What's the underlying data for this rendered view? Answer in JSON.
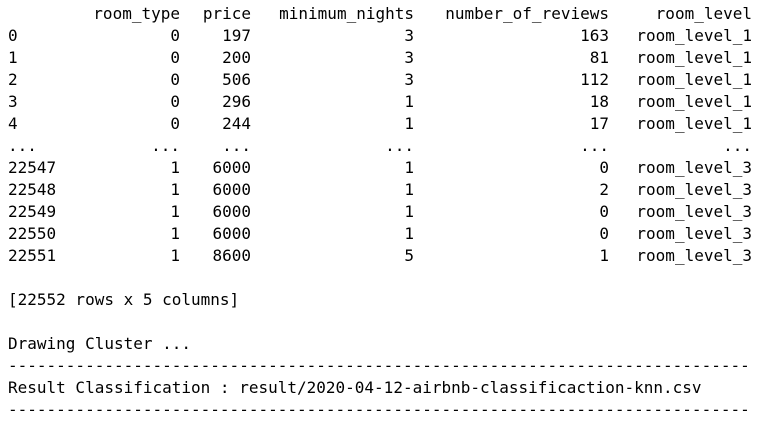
{
  "table": {
    "columns": [
      "room_type",
      "price",
      "minimum_nights",
      "number_of_reviews",
      "room_level"
    ],
    "rows": [
      {
        "index": "0",
        "room_type": "0",
        "price": "197",
        "minimum_nights": "3",
        "number_of_reviews": "163",
        "room_level": "room_level_1"
      },
      {
        "index": "1",
        "room_type": "0",
        "price": "200",
        "minimum_nights": "3",
        "number_of_reviews": "81",
        "room_level": "room_level_1"
      },
      {
        "index": "2",
        "room_type": "0",
        "price": "506",
        "minimum_nights": "3",
        "number_of_reviews": "112",
        "room_level": "room_level_1"
      },
      {
        "index": "3",
        "room_type": "0",
        "price": "296",
        "minimum_nights": "1",
        "number_of_reviews": "18",
        "room_level": "room_level_1"
      },
      {
        "index": "4",
        "room_type": "0",
        "price": "244",
        "minimum_nights": "1",
        "number_of_reviews": "17",
        "room_level": "room_level_1"
      },
      {
        "index": "...",
        "room_type": "...",
        "price": "...",
        "minimum_nights": "...",
        "number_of_reviews": "...",
        "room_level": "..."
      },
      {
        "index": "22547",
        "room_type": "1",
        "price": "6000",
        "minimum_nights": "1",
        "number_of_reviews": "0",
        "room_level": "room_level_3"
      },
      {
        "index": "22548",
        "room_type": "1",
        "price": "6000",
        "minimum_nights": "1",
        "number_of_reviews": "2",
        "room_level": "room_level_3"
      },
      {
        "index": "22549",
        "room_type": "1",
        "price": "6000",
        "minimum_nights": "1",
        "number_of_reviews": "0",
        "room_level": "room_level_3"
      },
      {
        "index": "22550",
        "room_type": "1",
        "price": "6000",
        "minimum_nights": "1",
        "number_of_reviews": "0",
        "room_level": "room_level_3"
      },
      {
        "index": "22551",
        "room_type": "1",
        "price": "8600",
        "minimum_nights": "5",
        "number_of_reviews": "1",
        "room_level": "room_level_3"
      }
    ],
    "summary": "[22552 rows x 5 columns]"
  },
  "output": {
    "drawing": "Drawing Cluster ...",
    "separator": "----------------------------------------------------------------------------------------------------",
    "result": "Result Classification : result/2020-04-12-airbnb-classificaction-knn.csv"
  }
}
